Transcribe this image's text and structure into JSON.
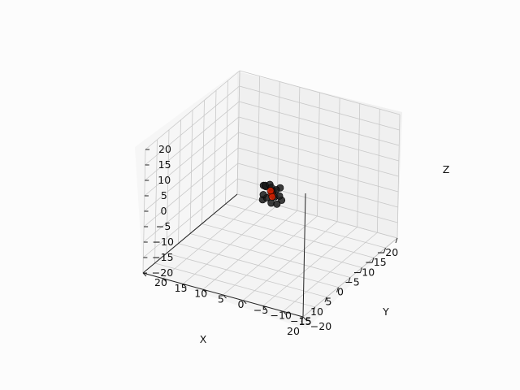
{
  "chart_data": {
    "type": "scatter",
    "projection": "3d",
    "xlabel": "X",
    "ylabel": "Y",
    "zlabel": "Z",
    "xlim": [
      -20,
      20
    ],
    "ylim": [
      -20,
      20
    ],
    "zlim": [
      -20,
      20
    ],
    "x_ticks": [
      "−20",
      "−15",
      "−10",
      "−5",
      "0",
      "5",
      "10",
      "15",
      "20"
    ],
    "y_ticks": [
      "−20",
      "−15",
      "−10",
      "−5",
      "0",
      "5",
      "10",
      "15",
      "20"
    ],
    "z_ticks": [
      "−20",
      "−15",
      "−10",
      "−5",
      "0",
      "5",
      "10",
      "15",
      "20"
    ],
    "grid": true,
    "series": [
      {
        "marker_color": "#1a1a1a",
        "points": [
          [
            -2,
            -1,
            1
          ],
          [
            2,
            1,
            -1
          ],
          [
            0,
            2,
            2
          ],
          [
            -1,
            -2,
            -2
          ],
          [
            1,
            -1,
            2
          ],
          [
            -2,
            1,
            -1
          ],
          [
            2,
            -2,
            1
          ],
          [
            0,
            0,
            -3
          ],
          [
            -1,
            2,
            1
          ],
          [
            1,
            1,
            3
          ],
          [
            2,
            0,
            0
          ],
          [
            -2,
            0,
            0
          ],
          [
            0,
            -2,
            0
          ],
          [
            0,
            2,
            -1
          ],
          [
            1,
            -2,
            -2
          ],
          [
            -1,
            1,
            2
          ],
          [
            0,
            0,
            2
          ]
        ]
      },
      {
        "marker_color": "#cc1f00",
        "points": [
          [
            0,
            0,
            0
          ],
          [
            0.5,
            -0.5,
            -0.5
          ],
          [
            -0.5,
            0.5,
            0.5
          ]
        ]
      }
    ]
  }
}
